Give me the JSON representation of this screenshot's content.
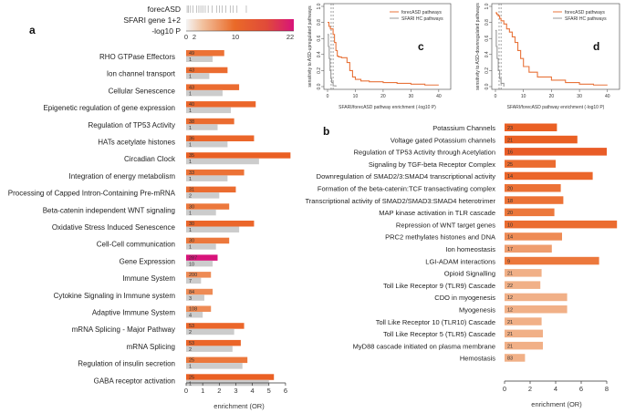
{
  "chart_data": [
    {
      "panel": "a",
      "type": "bar",
      "legend_title": [
        "forecASD",
        "SFARI gene 1+2",
        "-log10 P"
      ],
      "legend_ticks": [
        "0",
        "2",
        "10",
        "22"
      ],
      "xlabel": "enrichment (OR)",
      "xlim": [
        0,
        6.5
      ],
      "xticks": [
        "0",
        "1",
        "2",
        "3",
        "4",
        "5",
        "6"
      ],
      "categories": [
        "RHO GTPase Effectors",
        "Ion channel transport",
        "Cellular Senescence",
        "Epigenetic regulation of gene expression",
        "Regulation of TP53 Activity",
        "HATs acetylate histones",
        "Circadian Clock",
        "Integration of energy metabolism",
        "Processing of Capped Intron-Containing Pre-mRNA",
        "Beta-catenin independent WNT signaling",
        "Oxidative Stress Induced Senescence",
        "Cell-Cell communication",
        "Gene Expression",
        "Immune System",
        "Cytokine Signaling in Immune system",
        "Adaptive Immune System",
        "mRNA Splicing - Major Pathway",
        "mRNA Splicing",
        "Regulation of insulin secretion",
        "GABA receptor activation"
      ],
      "series": [
        {
          "name": "forecASD",
          "values": [
            2.3,
            2.5,
            3.2,
            4.2,
            2.9,
            4.1,
            6.3,
            3.5,
            3.0,
            2.6,
            4.1,
            2.6,
            1.9,
            1.5,
            1.6,
            1.5,
            3.5,
            3.3,
            3.7,
            5.3
          ],
          "labels": [
            "49",
            "43",
            "43",
            "40",
            "38",
            "36",
            "35",
            "33",
            "31",
            "30",
            "30",
            "30",
            "287",
            "200",
            "84",
            "108",
            "53",
            "53",
            "25",
            "25"
          ],
          "neglogp": [
            7,
            8,
            8,
            9,
            8,
            9,
            10,
            7,
            8,
            6,
            9,
            6,
            22,
            5,
            5,
            5,
            9,
            9,
            6,
            10
          ]
        },
        {
          "name": "SFARI gene 1+2",
          "values": [
            1.6,
            1.4,
            2.2,
            2.7,
            1.9,
            2.5,
            4.4,
            2.5,
            2.0,
            1.8,
            3.2,
            1.8,
            1.6,
            0.9,
            1.1,
            1.0,
            2.9,
            2.8,
            3.4,
            5.0
          ],
          "labels": [
            "1",
            "1",
            "1",
            "1",
            "1",
            "1",
            "1",
            "1",
            "2",
            "1",
            "1",
            "1",
            "10",
            "7",
            "3",
            "4",
            "2",
            "2",
            "1",
            "1"
          ]
        }
      ]
    },
    {
      "panel": "b",
      "type": "bar",
      "xlabel": "enrichment (OR)",
      "xlim": [
        0,
        9
      ],
      "xticks": [
        "0",
        "2",
        "4",
        "6",
        "8"
      ],
      "categories": [
        "Potassium Channels",
        "Voltage gated Potassium channels",
        "Regulation of TP53 Activity through Acetylation",
        "Signaling by TGF-beta Receptor Complex",
        "Downregulation of SMAD2/3:SMAD4 transcriptional activity",
        "Formation of the beta-catenin:TCF transactivating complex",
        "Transcriptional activity of SMAD2/SMAD3:SMAD4 heterotrimer",
        "MAP kinase activation in TLR cascade",
        "Repression of WNT target genes",
        "PRC2 methylates histones and DNA",
        "Ion homeostasis",
        "LGI-ADAM interactions",
        "Opioid Signalling",
        "Toll Like Receptor 9 (TLR9) Cascade",
        "CDO in myogenesis",
        "Myogenesis",
        "Toll Like Receptor 10 (TLR10) Cascade",
        "Toll Like Receptor 5 (TLR5) Cascade",
        "MyD88 cascade initiated on plasma membrane",
        "Hemostasis"
      ],
      "values": [
        4.1,
        5.7,
        8.0,
        4.0,
        6.9,
        4.4,
        4.6,
        3.9,
        8.8,
        4.5,
        3.7,
        7.4,
        2.9,
        2.8,
        4.9,
        4.9,
        2.9,
        3.0,
        3.0,
        1.6
      ],
      "labels": [
        "23",
        "21",
        "16",
        "25",
        "14",
        "20",
        "18",
        "20",
        "10",
        "14",
        "17",
        "9",
        "21",
        "22",
        "12",
        "12",
        "21",
        "21",
        "21",
        "83"
      ],
      "neglogp": [
        10,
        10,
        11,
        8,
        9,
        7,
        7,
        6,
        8,
        5,
        4,
        6,
        3,
        3,
        3,
        3,
        3,
        3,
        3,
        3
      ]
    },
    {
      "panel": "c",
      "type": "line",
      "xlabel": "SFARI/forecASD pathway enrichment (-log10 P)",
      "ylabel": "sensitivity to ASD-upregulated pathways",
      "xlim": [
        0,
        43
      ],
      "ylim": [
        0,
        1
      ],
      "xticks": [
        "0",
        "10",
        "20",
        "30",
        "40"
      ],
      "yticks": [
        "0.0",
        "0.2",
        "0.4",
        "0.6",
        "0.8",
        "1.0"
      ],
      "legend": [
        "forecASD pathways",
        "SFARI HC pathways"
      ],
      "series": [
        {
          "name": "forecASD pathways",
          "x": [
            0,
            0.5,
            1,
            2,
            2.5,
            3,
            3.5,
            4,
            5,
            6,
            7,
            8,
            9,
            10,
            12,
            15,
            20,
            25,
            30,
            35,
            40
          ],
          "y": [
            0.8,
            0.75,
            0.72,
            0.65,
            0.55,
            0.45,
            0.38,
            0.37,
            0.36,
            0.36,
            0.3,
            0.2,
            0.12,
            0.09,
            0.07,
            0.06,
            0.05,
            0.04,
            0.03,
            0.02,
            0.02
          ]
        },
        {
          "name": "SFARI HC pathways",
          "x": [
            0,
            0.3,
            0.6,
            0.9,
            1.2,
            1.5,
            2,
            3
          ],
          "y": [
            0.65,
            0.5,
            0.35,
            0.2,
            0.1,
            0.05,
            0.01,
            0
          ]
        }
      ],
      "vlines": [
        1.3,
        2.0
      ]
    },
    {
      "panel": "d",
      "type": "line",
      "xlabel": "SFARI/forecASD pathway enrichment (-log10 P)",
      "ylabel": "sensitivity to ASD-downregulated pathways",
      "xlim": [
        0,
        43
      ],
      "ylim": [
        0,
        1
      ],
      "xticks": [
        "0",
        "10",
        "20",
        "30",
        "40"
      ],
      "yticks": [
        "0.0",
        "0.2",
        "0.4",
        "0.6",
        "0.8",
        "1.0"
      ],
      "legend": [
        "forecASD pathways",
        "SFARI HC pathways"
      ],
      "series": [
        {
          "name": "forecASD pathways",
          "x": [
            0,
            0.5,
            1,
            1.5,
            2,
            3,
            4,
            5,
            6,
            7,
            8,
            9,
            10,
            12,
            15,
            20,
            25,
            30,
            35,
            40
          ],
          "y": [
            0.92,
            0.9,
            0.88,
            0.85,
            0.82,
            0.78,
            0.72,
            0.68,
            0.62,
            0.55,
            0.45,
            0.35,
            0.25,
            0.18,
            0.12,
            0.08,
            0.05,
            0.03,
            0.02,
            0.02
          ]
        },
        {
          "name": "SFARI HC pathways",
          "x": [
            0,
            0.3,
            0.6,
            1,
            1.5,
            2,
            3
          ],
          "y": [
            0.7,
            0.5,
            0.35,
            0.2,
            0.1,
            0.04,
            0
          ]
        }
      ],
      "vlines": [
        1.3,
        2.0
      ]
    }
  ],
  "panel_labels": {
    "a": "a",
    "b": "b",
    "c": "c",
    "d": "d"
  }
}
